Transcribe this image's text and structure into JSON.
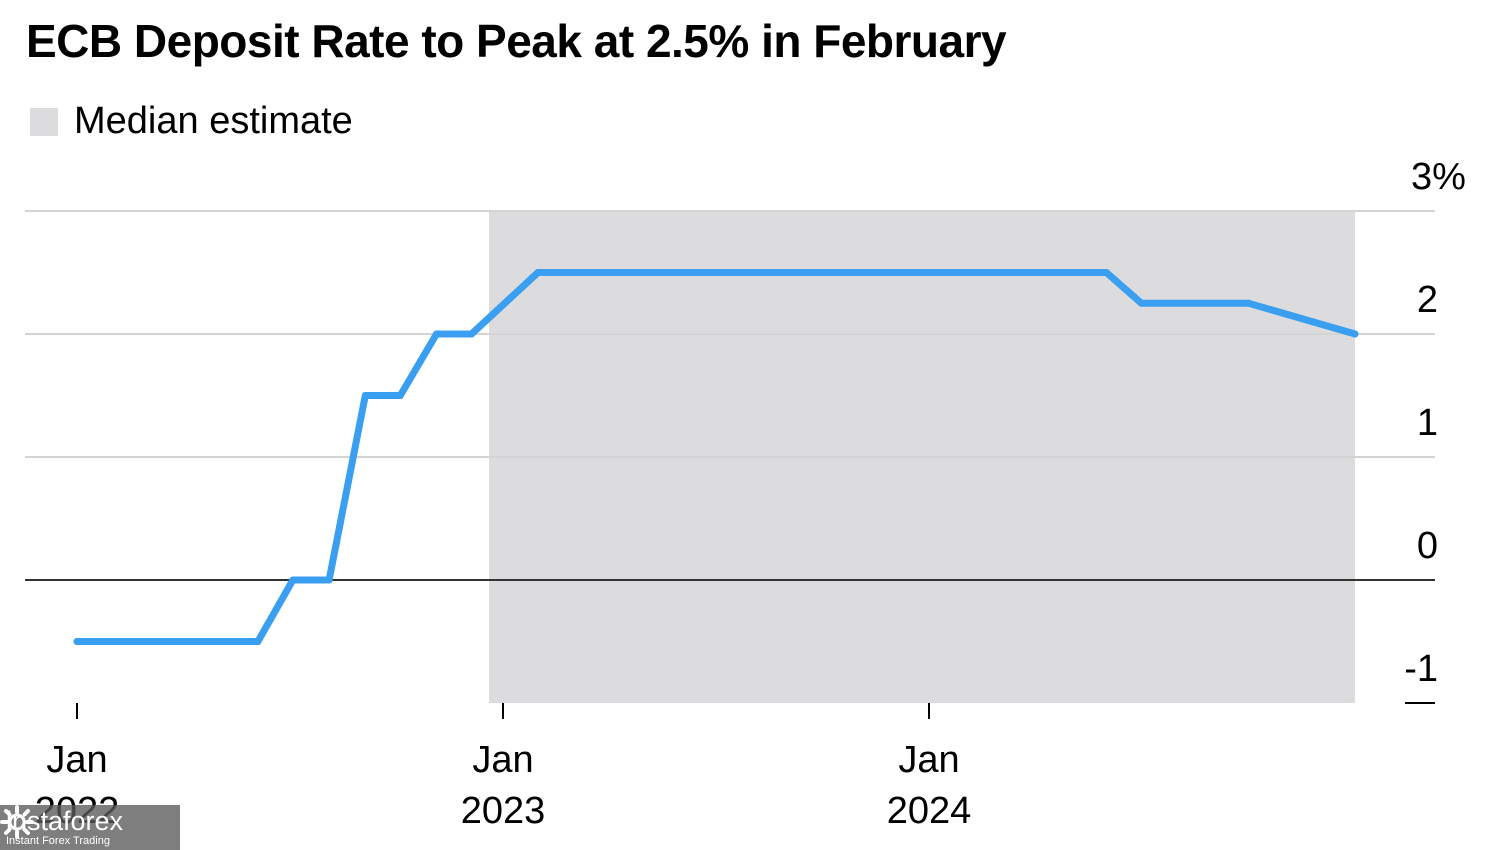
{
  "chart_data": {
    "type": "line",
    "title": "ECB Deposit Rate to Peak at 2.5% in February",
    "legend": [
      {
        "label": "Median estimate",
        "color": "#dcdcde",
        "kind": "shaded-region"
      }
    ],
    "legend_placement": "top-left",
    "shaded_region": {
      "label": "Median estimate",
      "x_start": "2022-12-20",
      "x_end": "2024-12-31"
    },
    "series": [
      {
        "color": "#3a9ff0",
        "points": [
          {
            "x": "2022-01-01",
            "y": -0.5
          },
          {
            "x": "2022-06-05",
            "y": -0.5
          },
          {
            "x": "2022-07-05",
            "y": 0.0
          },
          {
            "x": "2022-08-05",
            "y": 0.0
          },
          {
            "x": "2022-09-05",
            "y": 1.5
          },
          {
            "x": "2022-10-05",
            "y": 1.5
          },
          {
            "x": "2022-11-05",
            "y": 2.0
          },
          {
            "x": "2022-12-05",
            "y": 2.0
          },
          {
            "x": "2023-01-31",
            "y": 2.5
          },
          {
            "x": "2024-06-01",
            "y": 2.5
          },
          {
            "x": "2024-07-01",
            "y": 2.25
          },
          {
            "x": "2024-10-01",
            "y": 2.25
          },
          {
            "x": "2024-12-31",
            "y": 2.0
          }
        ]
      }
    ],
    "y_axis": {
      "range": [
        -1,
        3
      ],
      "ticks": [
        {
          "value": 3,
          "label": "3%"
        },
        {
          "value": 2,
          "label": "2"
        },
        {
          "value": 1,
          "label": "1"
        },
        {
          "value": 0,
          "label": "0"
        },
        {
          "value": -1,
          "label": "-1"
        }
      ],
      "position": "right",
      "grid": true
    },
    "x_axis": {
      "range": [
        "2022-01-01",
        "2024-12-31"
      ],
      "ticks": [
        {
          "value": "2022-01-01",
          "label_top": "Jan",
          "label_bottom": "2022"
        },
        {
          "value": "2023-01-01",
          "label_top": "Jan",
          "label_bottom": "2023"
        },
        {
          "value": "2024-01-01",
          "label_top": "Jan",
          "label_bottom": "2024"
        }
      ]
    }
  },
  "watermark": {
    "brand": "instaforex",
    "tagline": "Instant Forex Trading"
  }
}
